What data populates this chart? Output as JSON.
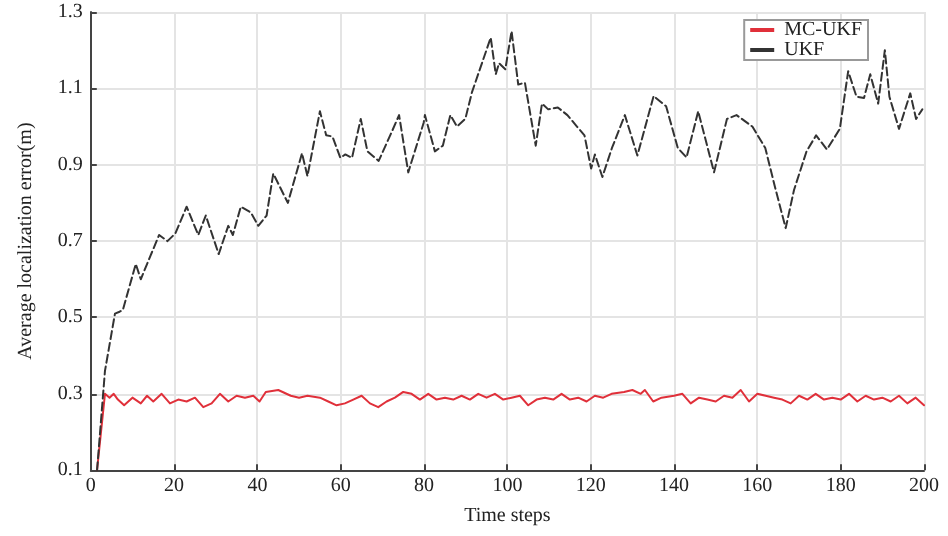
{
  "chart_data": {
    "type": "line",
    "xlabel": "Time steps",
    "ylabel": "Average localization error(m)",
    "xlim": [
      0,
      200
    ],
    "xticks": [
      0,
      20,
      40,
      60,
      80,
      100,
      120,
      140,
      160,
      180,
      200
    ],
    "ylim": [
      0.1,
      1.3
    ],
    "yticks": [
      0.1,
      0.3,
      0.5,
      0.7,
      0.9,
      1.1,
      1.3
    ],
    "grid": true,
    "legend": "top right",
    "marker": "none",
    "series": [
      {
        "name": "MC-UKF",
        "color": "#e0303a",
        "line_style": "solid",
        "x": [
          1.5,
          3.4,
          4.5,
          5.5,
          6.5,
          8,
          10,
          12,
          13.5,
          15,
          17,
          19,
          21,
          23,
          25,
          27,
          29,
          31,
          33,
          35,
          37,
          39,
          40.5,
          42,
          45,
          48,
          50,
          52,
          55,
          57,
          59,
          61,
          63,
          65,
          67,
          69,
          71,
          73,
          75,
          77,
          79,
          81,
          83,
          85,
          87,
          89,
          91,
          93,
          95,
          97,
          99,
          101,
          103,
          105,
          107,
          109,
          111,
          113,
          115,
          117,
          119,
          121,
          123,
          125,
          128,
          130,
          132,
          133,
          135,
          137,
          140,
          142,
          144,
          146,
          148,
          150,
          152,
          154,
          156,
          158,
          160,
          162,
          164,
          166,
          168,
          170,
          172,
          174,
          176,
          178,
          180,
          182,
          184,
          186,
          188,
          190,
          192,
          194,
          196,
          198,
          200
        ],
        "values": [
          0.1,
          0.3,
          0.29,
          0.3,
          0.285,
          0.27,
          0.29,
          0.275,
          0.295,
          0.28,
          0.3,
          0.275,
          0.285,
          0.28,
          0.29,
          0.265,
          0.275,
          0.3,
          0.28,
          0.295,
          0.29,
          0.295,
          0.28,
          0.305,
          0.31,
          0.295,
          0.29,
          0.295,
          0.29,
          0.28,
          0.27,
          0.275,
          0.285,
          0.295,
          0.275,
          0.265,
          0.28,
          0.29,
          0.305,
          0.3,
          0.285,
          0.3,
          0.285,
          0.29,
          0.285,
          0.295,
          0.285,
          0.3,
          0.29,
          0.3,
          0.285,
          0.29,
          0.295,
          0.27,
          0.285,
          0.29,
          0.285,
          0.3,
          0.285,
          0.29,
          0.28,
          0.295,
          0.29,
          0.3,
          0.305,
          0.31,
          0.3,
          0.31,
          0.28,
          0.29,
          0.295,
          0.3,
          0.275,
          0.29,
          0.285,
          0.28,
          0.295,
          0.29,
          0.31,
          0.28,
          0.3,
          0.295,
          0.29,
          0.285,
          0.275,
          0.295,
          0.285,
          0.3,
          0.285,
          0.29,
          0.285,
          0.3,
          0.28,
          0.295,
          0.285,
          0.29,
          0.28,
          0.295,
          0.275,
          0.29,
          0.27
        ]
      },
      {
        "name": "UKF",
        "color": "#333333",
        "line_style": "dashed",
        "x": [
          1.5,
          3.4,
          5.8,
          6.9,
          7.7,
          10.8,
          12,
          13.5,
          16.4,
          18.4,
          20.3,
          23,
          25.8,
          27.6,
          30.7,
          33,
          34.1,
          36,
          38.4,
          40.2,
          42.2,
          43.8,
          47.3,
          50.7,
          52,
          55,
          56.5,
          58,
          59.9,
          61.1,
          62.7,
          64.8,
          66.4,
          69.1,
          72.2,
          74,
          76.2,
          79.9,
          80.2,
          82.6,
          84.5,
          86.3,
          87.9,
          89.9,
          91.5,
          96,
          97.2,
          98,
          99.5,
          101,
          102.6,
          104.2,
          106.8,
          108.3,
          109.8,
          112.1,
          114.4,
          116.7,
          118.5,
          120.1,
          121,
          122.8,
          125.1,
          128.2,
          131.2,
          135.1,
          138.1,
          140.9,
          143,
          145.8,
          149.6,
          152.7,
          155,
          158.8,
          161.9,
          164.2,
          166.8,
          168.8,
          171.8,
          174.1,
          176.7,
          179.8,
          181.8,
          183.8,
          185.6,
          187.1,
          189,
          190.6,
          191.7,
          194,
          196.7,
          198.1,
          199.6
        ],
        "values": [
          0.1,
          0.36,
          0.51,
          0.515,
          0.52,
          0.64,
          0.6,
          0.64,
          0.716,
          0.7,
          0.72,
          0.79,
          0.716,
          0.767,
          0.666,
          0.74,
          0.716,
          0.79,
          0.775,
          0.74,
          0.767,
          0.877,
          0.8,
          0.93,
          0.87,
          1.04,
          0.977,
          0.974,
          0.918,
          0.927,
          0.918,
          1.02,
          0.935,
          0.91,
          0.985,
          1.03,
          0.88,
          1.01,
          1.03,
          0.935,
          0.95,
          1.03,
          1.0,
          1.02,
          1.09,
          1.233,
          1.137,
          1.166,
          1.15,
          1.25,
          1.11,
          1.115,
          0.95,
          1.06,
          1.045,
          1.05,
          1.03,
          1.0,
          0.977,
          0.89,
          0.927,
          0.868,
          0.944,
          1.03,
          0.924,
          1.08,
          1.053,
          0.944,
          0.919,
          1.04,
          0.88,
          1.02,
          1.03,
          1.0,
          0.944,
          0.843,
          0.734,
          0.834,
          0.935,
          0.977,
          0.94,
          0.994,
          1.145,
          1.078,
          1.075,
          1.137,
          1.06,
          1.2,
          1.078,
          0.994,
          1.087,
          1.02,
          1.045
        ]
      }
    ]
  }
}
